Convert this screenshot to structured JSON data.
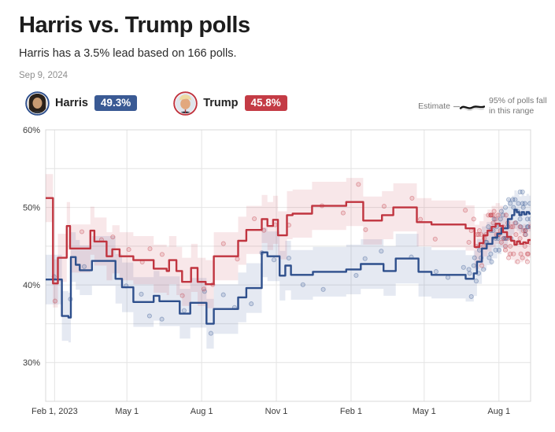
{
  "header": {
    "title": "Harris vs. Trump polls",
    "subtitle": "Harris has a 3.5% lead based on 166 polls.",
    "date": "Sep 9, 2024"
  },
  "legend": {
    "harris": {
      "name": "Harris",
      "value": "49.3%",
      "badge_color": "#3a5a94"
    },
    "trump": {
      "name": "Trump",
      "value": "45.8%",
      "badge_color": "#c43b45"
    },
    "estimate_label": "Estimate",
    "range_note_line1": "95% of polls fall",
    "range_note_line2": "in this range"
  },
  "colors": {
    "harris_line": "#2e4f8c",
    "trump_line": "#c0343f",
    "harris_band": "rgba(70,100,160,0.14)",
    "trump_band": "rgba(198,60,70,0.12)",
    "grid": "#e4e4e4",
    "plot_border": "#d8d8d8",
    "axis_text": "#3a3a3a"
  },
  "chart_data": {
    "type": "line",
    "title": "Harris vs. Trump polling averages with 95% poll range and individual polls",
    "x_domain": [
      "2023-01-21",
      "2024-09-09"
    ],
    "ylim": [
      25,
      60
    ],
    "y_gridlines": [
      60,
      55,
      50,
      45,
      40,
      35,
      30
    ],
    "y_ticks": [
      {
        "v": 60,
        "label": "60%"
      },
      {
        "v": 50,
        "label": "50%"
      },
      {
        "v": 40,
        "label": "40%"
      },
      {
        "v": 30,
        "label": "30%"
      }
    ],
    "x_ticks": [
      {
        "d": "2023-02-01",
        "label": "Feb 1, 2023"
      },
      {
        "d": "2023-05-01",
        "label": "May 1"
      },
      {
        "d": "2023-08-01",
        "label": "Aug 1"
      },
      {
        "d": "2023-11-01",
        "label": "Nov 1"
      },
      {
        "d": "2024-02-01",
        "label": "Feb 1"
      },
      {
        "d": "2024-05-01",
        "label": "May 1"
      },
      {
        "d": "2024-08-01",
        "label": "Aug 1"
      }
    ],
    "series": [
      {
        "name": "Harris",
        "color": "#2e4f8c",
        "band_color": "rgba(70,100,160,0.14)",
        "band_halfwidth": 3.2,
        "points": [
          [
            "2023-01-21",
            40.7
          ],
          [
            "2023-02-10",
            36.0
          ],
          [
            "2023-02-18",
            35.8
          ],
          [
            "2023-02-21",
            43.6
          ],
          [
            "2023-02-27",
            42.6
          ],
          [
            "2023-03-04",
            41.9
          ],
          [
            "2023-03-19",
            43.1
          ],
          [
            "2023-04-17",
            40.8
          ],
          [
            "2023-04-25",
            39.7
          ],
          [
            "2023-05-09",
            37.8
          ],
          [
            "2023-06-03",
            38.6
          ],
          [
            "2023-06-10",
            37.9
          ],
          [
            "2023-07-05",
            36.3
          ],
          [
            "2023-07-18",
            37.7
          ],
          [
            "2023-08-07",
            35.0
          ],
          [
            "2023-08-16",
            36.9
          ],
          [
            "2023-09-15",
            38.4
          ],
          [
            "2023-09-25",
            39.6
          ],
          [
            "2023-10-14",
            44.2
          ],
          [
            "2023-10-21",
            43.7
          ],
          [
            "2023-11-05",
            41.2
          ],
          [
            "2023-11-12",
            42.5
          ],
          [
            "2023-11-19",
            41.3
          ],
          [
            "2023-12-16",
            41.7
          ],
          [
            "2024-01-26",
            42.0
          ],
          [
            "2024-02-13",
            42.7
          ],
          [
            "2024-03-12",
            41.8
          ],
          [
            "2024-03-27",
            43.4
          ],
          [
            "2024-04-24",
            41.7
          ],
          [
            "2024-05-10",
            41.3
          ],
          [
            "2024-06-21",
            40.8
          ],
          [
            "2024-07-01",
            41.5
          ],
          [
            "2024-07-05",
            43.0
          ],
          [
            "2024-07-11",
            44.7
          ],
          [
            "2024-07-17",
            45.3
          ],
          [
            "2024-07-24",
            46.1
          ],
          [
            "2024-07-30",
            46.6
          ],
          [
            "2024-08-04",
            47.3
          ],
          [
            "2024-08-12",
            48.5
          ],
          [
            "2024-08-17",
            49.0
          ],
          [
            "2024-08-20",
            49.7
          ],
          [
            "2024-08-23",
            49.4
          ],
          [
            "2024-08-26",
            49.0
          ],
          [
            "2024-08-29",
            49.4
          ],
          [
            "2024-09-01",
            49.1
          ],
          [
            "2024-09-04",
            49.4
          ],
          [
            "2024-09-07",
            49.2
          ],
          [
            "2024-09-09",
            49.3
          ]
        ]
      },
      {
        "name": "Trump",
        "color": "#c0343f",
        "band_color": "rgba(198,60,70,0.12)",
        "band_halfwidth": 3.1,
        "points": [
          [
            "2023-01-21",
            51.2
          ],
          [
            "2023-01-30",
            40.2
          ],
          [
            "2023-02-05",
            43.5
          ],
          [
            "2023-02-16",
            47.6
          ],
          [
            "2023-02-20",
            44.7
          ],
          [
            "2023-03-17",
            47.0
          ],
          [
            "2023-03-22",
            45.6
          ],
          [
            "2023-04-06",
            43.7
          ],
          [
            "2023-04-13",
            44.6
          ],
          [
            "2023-04-22",
            43.7
          ],
          [
            "2023-05-09",
            43.2
          ],
          [
            "2023-06-03",
            42.1
          ],
          [
            "2023-06-19",
            41.8
          ],
          [
            "2023-06-22",
            43.2
          ],
          [
            "2023-07-01",
            41.8
          ],
          [
            "2023-07-08",
            40.4
          ],
          [
            "2023-07-19",
            42.2
          ],
          [
            "2023-07-27",
            40.4
          ],
          [
            "2023-08-06",
            40.1
          ],
          [
            "2023-08-16",
            43.7
          ],
          [
            "2023-09-15",
            45.7
          ],
          [
            "2023-09-25",
            47.1
          ],
          [
            "2023-10-14",
            48.5
          ],
          [
            "2023-10-21",
            47.6
          ],
          [
            "2023-10-28",
            48.4
          ],
          [
            "2023-11-03",
            46.4
          ],
          [
            "2023-11-14",
            49.0
          ],
          [
            "2023-11-21",
            49.2
          ],
          [
            "2023-12-15",
            50.2
          ],
          [
            "2024-01-26",
            50.7
          ],
          [
            "2024-02-16",
            48.3
          ],
          [
            "2024-03-10",
            49.0
          ],
          [
            "2024-03-24",
            50.0
          ],
          [
            "2024-04-22",
            48.1
          ],
          [
            "2024-05-10",
            47.8
          ],
          [
            "2024-06-21",
            47.3
          ],
          [
            "2024-07-02",
            44.9
          ],
          [
            "2024-07-08",
            45.4
          ],
          [
            "2024-07-13",
            46.4
          ],
          [
            "2024-07-18",
            47.0
          ],
          [
            "2024-07-23",
            47.5
          ],
          [
            "2024-07-28",
            47.9
          ],
          [
            "2024-08-02",
            47.6
          ],
          [
            "2024-08-06",
            46.8
          ],
          [
            "2024-08-11",
            46.2
          ],
          [
            "2024-08-16",
            45.7
          ],
          [
            "2024-08-20",
            45.2
          ],
          [
            "2024-08-23",
            45.6
          ],
          [
            "2024-08-27",
            45.3
          ],
          [
            "2024-08-31",
            45.5
          ],
          [
            "2024-09-03",
            45.4
          ],
          [
            "2024-09-06",
            45.8
          ],
          [
            "2024-09-09",
            45.8
          ]
        ]
      }
    ],
    "scatter": {
      "seed": 42,
      "sparse_start_day": 12,
      "dense_start_day": 521,
      "end_day": 597,
      "sparse_sigma": 2.4,
      "dense_sigma": 2.0,
      "dot_radius": 2.6
    }
  }
}
